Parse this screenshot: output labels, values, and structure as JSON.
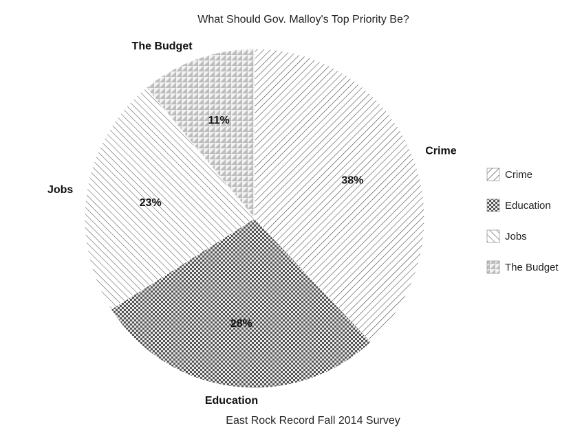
{
  "chart_data": {
    "type": "pie",
    "title": "What Should Gov. Malloy's Top Priority Be?",
    "caption": "East Rock Record Fall 2014 Survey",
    "slices": [
      {
        "label": "Crime",
        "value": 38,
        "display": "38%",
        "pattern": "hatch-back"
      },
      {
        "label": "Education",
        "value": 28,
        "display": "28%",
        "pattern": "checker"
      },
      {
        "label": "Jobs",
        "value": 23,
        "display": "23%",
        "pattern": "hatch-forward"
      },
      {
        "label": "The Budget",
        "value": 11,
        "display": "11%",
        "pattern": "triangles"
      }
    ],
    "legend": {
      "placement": "right",
      "items": [
        "Crime",
        "Education",
        "Jobs",
        "The Budget"
      ]
    },
    "colors": {
      "stroke": "#1a1a1a",
      "checker": "#555555",
      "hatch": "#4a4a4a",
      "triangles": "#bdbdbd"
    }
  }
}
